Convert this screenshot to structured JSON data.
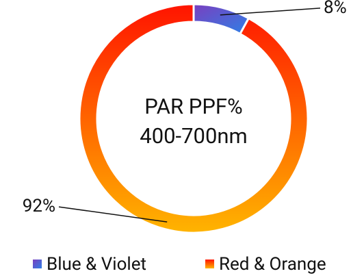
{
  "chart_data": {
    "type": "donut",
    "title": "PAR PPF%",
    "subtitle": "400-700nm",
    "categories": [
      "Blue & Violet",
      "Red & Orange"
    ],
    "values": [
      8,
      92
    ],
    "value_labels": [
      "8%",
      "92%"
    ],
    "colors": [
      [
        "#7a3fbf",
        "#2f7fe6"
      ],
      [
        "#ff1400",
        "#ffb400"
      ]
    ],
    "legend": "bottom"
  }
}
